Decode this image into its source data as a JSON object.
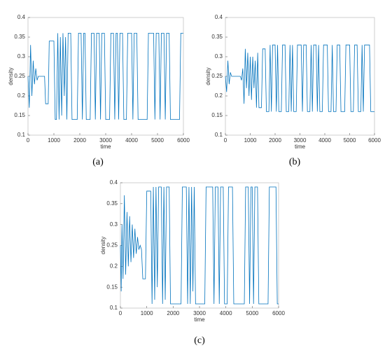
{
  "chart_data": [
    {
      "type": "line",
      "caption": "(a)",
      "xlabel": "time",
      "ylabel": "density",
      "color": "#0072bd",
      "xlim": [
        0,
        6000
      ],
      "xticks": [
        0,
        1000,
        2000,
        3000,
        4000,
        5000,
        6000
      ],
      "ylim": [
        0.1,
        0.4
      ],
      "yticks": [
        0.1,
        0.15,
        0.2,
        0.25,
        0.3,
        0.35,
        0.4
      ],
      "x": [
        0,
        50,
        100,
        150,
        200,
        250,
        300,
        350,
        400,
        640,
        680,
        780,
        820,
        1000,
        1050,
        1100,
        1150,
        1200,
        1250,
        1300,
        1350,
        1400,
        1450,
        1500,
        1550,
        1650,
        1700,
        1900,
        1950,
        2050,
        2100,
        2150,
        2200,
        2250,
        2400,
        2450,
        2550,
        2600,
        2650,
        2750,
        2800,
        2850,
        2950,
        3000,
        3150,
        3200,
        3300,
        3350,
        3400,
        3450,
        3500,
        3550,
        3650,
        3700,
        3800,
        3850,
        4000,
        4050,
        4100,
        4200,
        4250,
        4600,
        4650,
        4850,
        4900,
        4950,
        5050,
        5100,
        5150,
        5250,
        5300,
        5350,
        5450,
        5500,
        5850,
        5900,
        6000
      ],
      "values": [
        0.25,
        0.17,
        0.33,
        0.2,
        0.29,
        0.23,
        0.27,
        0.24,
        0.25,
        0.25,
        0.18,
        0.18,
        0.34,
        0.34,
        0.14,
        0.14,
        0.36,
        0.14,
        0.35,
        0.15,
        0.36,
        0.2,
        0.35,
        0.14,
        0.36,
        0.36,
        0.14,
        0.14,
        0.36,
        0.36,
        0.14,
        0.36,
        0.36,
        0.14,
        0.14,
        0.36,
        0.36,
        0.14,
        0.36,
        0.36,
        0.14,
        0.36,
        0.36,
        0.14,
        0.14,
        0.36,
        0.36,
        0.14,
        0.36,
        0.36,
        0.14,
        0.36,
        0.36,
        0.14,
        0.14,
        0.36,
        0.36,
        0.14,
        0.36,
        0.36,
        0.14,
        0.14,
        0.36,
        0.36,
        0.14,
        0.36,
        0.36,
        0.14,
        0.36,
        0.36,
        0.14,
        0.36,
        0.36,
        0.14,
        0.14,
        0.36,
        0.36
      ]
    },
    {
      "type": "line",
      "caption": "(b)",
      "xlabel": "time",
      "ylabel": "density",
      "color": "#0072bd",
      "xlim": [
        0,
        6000
      ],
      "xticks": [
        0,
        1000,
        2000,
        3000,
        4000,
        5000,
        6000
      ],
      "ylim": [
        0.1,
        0.4
      ],
      "yticks": [
        0.1,
        0.15,
        0.2,
        0.25,
        0.3,
        0.35,
        0.4
      ],
      "x": [
        0,
        50,
        100,
        150,
        200,
        250,
        600,
        650,
        700,
        750,
        800,
        850,
        900,
        950,
        1000,
        1050,
        1100,
        1150,
        1200,
        1250,
        1300,
        1350,
        1450,
        1500,
        1600,
        1650,
        1750,
        1800,
        1850,
        1900,
        2000,
        2050,
        2100,
        2150,
        2250,
        2300,
        2400,
        2450,
        2550,
        2600,
        2650,
        2700,
        2750,
        2850,
        2900,
        3050,
        3100,
        3150,
        3250,
        3300,
        3400,
        3450,
        3500,
        3550,
        3650,
        3700,
        3750,
        3800,
        3900,
        3950,
        4100,
        4150,
        4250,
        4300,
        4350,
        4450,
        4500,
        4600,
        4650,
        4800,
        4850,
        5000,
        5050,
        5150,
        5200,
        5300,
        5350,
        5450,
        5500,
        5550,
        5600,
        5800,
        5850,
        6000
      ],
      "values": [
        0.25,
        0.21,
        0.29,
        0.23,
        0.26,
        0.25,
        0.25,
        0.24,
        0.27,
        0.18,
        0.32,
        0.22,
        0.31,
        0.2,
        0.3,
        0.19,
        0.3,
        0.22,
        0.29,
        0.17,
        0.31,
        0.17,
        0.17,
        0.32,
        0.32,
        0.16,
        0.16,
        0.33,
        0.16,
        0.33,
        0.33,
        0.16,
        0.33,
        0.16,
        0.16,
        0.33,
        0.33,
        0.16,
        0.16,
        0.33,
        0.16,
        0.33,
        0.16,
        0.16,
        0.33,
        0.33,
        0.16,
        0.33,
        0.33,
        0.16,
        0.16,
        0.33,
        0.16,
        0.33,
        0.33,
        0.16,
        0.33,
        0.16,
        0.16,
        0.33,
        0.33,
        0.16,
        0.16,
        0.33,
        0.16,
        0.16,
        0.33,
        0.33,
        0.16,
        0.16,
        0.33,
        0.33,
        0.16,
        0.16,
        0.33,
        0.33,
        0.16,
        0.16,
        0.33,
        0.16,
        0.33,
        0.33,
        0.16,
        0.16
      ]
    },
    {
      "type": "line",
      "caption": "(c)",
      "xlabel": "time",
      "ylabel": "density",
      "color": "#0072bd",
      "xlim": [
        0,
        6000
      ],
      "xticks": [
        0,
        1000,
        2000,
        3000,
        4000,
        5000,
        6000
      ],
      "ylim": [
        0.1,
        0.4
      ],
      "yticks": [
        0.1,
        0.15,
        0.2,
        0.25,
        0.3,
        0.35,
        0.4
      ],
      "x": [
        0,
        30,
        60,
        100,
        150,
        200,
        250,
        300,
        350,
        400,
        450,
        500,
        550,
        600,
        650,
        700,
        750,
        800,
        850,
        950,
        1000,
        1150,
        1200,
        1250,
        1300,
        1350,
        1400,
        1450,
        1550,
        1600,
        1650,
        1700,
        1750,
        1850,
        1900,
        2300,
        2350,
        2500,
        2550,
        2600,
        2650,
        2700,
        2750,
        2800,
        2850,
        3200,
        3250,
        3500,
        3550,
        3600,
        3700,
        3750,
        3800,
        3900,
        3950,
        4050,
        4100,
        4250,
        4300,
        4700,
        4750,
        4850,
        4900,
        4950,
        5000,
        5050,
        5100,
        5200,
        5250,
        5600,
        5650,
        5900,
        5950,
        6000
      ],
      "values": [
        0.25,
        0.14,
        0.3,
        0.17,
        0.37,
        0.18,
        0.33,
        0.2,
        0.32,
        0.21,
        0.3,
        0.22,
        0.29,
        0.23,
        0.27,
        0.24,
        0.25,
        0.24,
        0.17,
        0.17,
        0.38,
        0.38,
        0.11,
        0.39,
        0.12,
        0.39,
        0.15,
        0.39,
        0.39,
        0.11,
        0.39,
        0.12,
        0.39,
        0.39,
        0.11,
        0.11,
        0.39,
        0.39,
        0.11,
        0.39,
        0.11,
        0.39,
        0.14,
        0.39,
        0.11,
        0.11,
        0.39,
        0.39,
        0.11,
        0.39,
        0.39,
        0.11,
        0.39,
        0.39,
        0.11,
        0.11,
        0.39,
        0.39,
        0.11,
        0.11,
        0.39,
        0.39,
        0.11,
        0.39,
        0.39,
        0.11,
        0.39,
        0.39,
        0.11,
        0.11,
        0.39,
        0.39,
        0.11,
        0.11
      ]
    }
  ]
}
